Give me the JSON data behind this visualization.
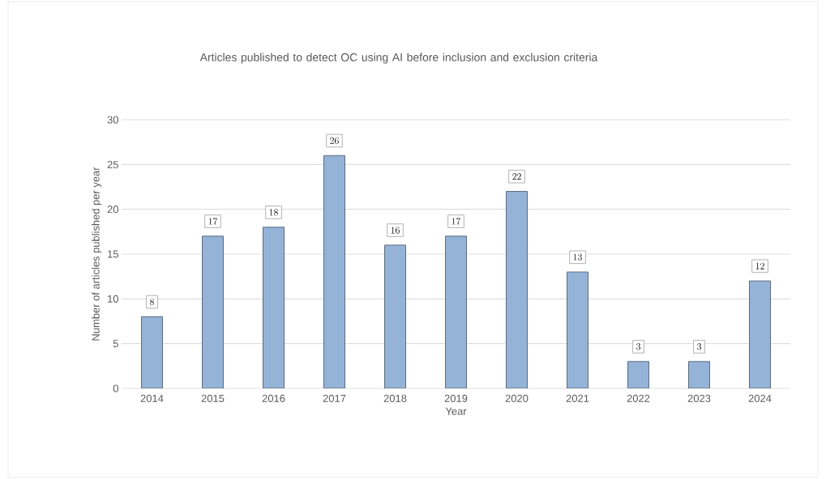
{
  "chart_data": {
    "type": "bar",
    "title": "Articles published to detect OC using AI before inclusion and exclusion criteria",
    "xlabel": "Year",
    "ylabel": "Number of articles published per year",
    "categories": [
      "2014",
      "2015",
      "2016",
      "2017",
      "2018",
      "2019",
      "2020",
      "2021",
      "2022",
      "2023",
      "2024"
    ],
    "values": [
      8,
      17,
      18,
      26,
      16,
      17,
      22,
      13,
      3,
      3,
      12
    ],
    "color": "#95b3d7",
    "ylim": [
      0,
      30
    ],
    "yticks": [
      0,
      5,
      10,
      15,
      20,
      25,
      30
    ],
    "grid": "y",
    "data_labels": true
  }
}
